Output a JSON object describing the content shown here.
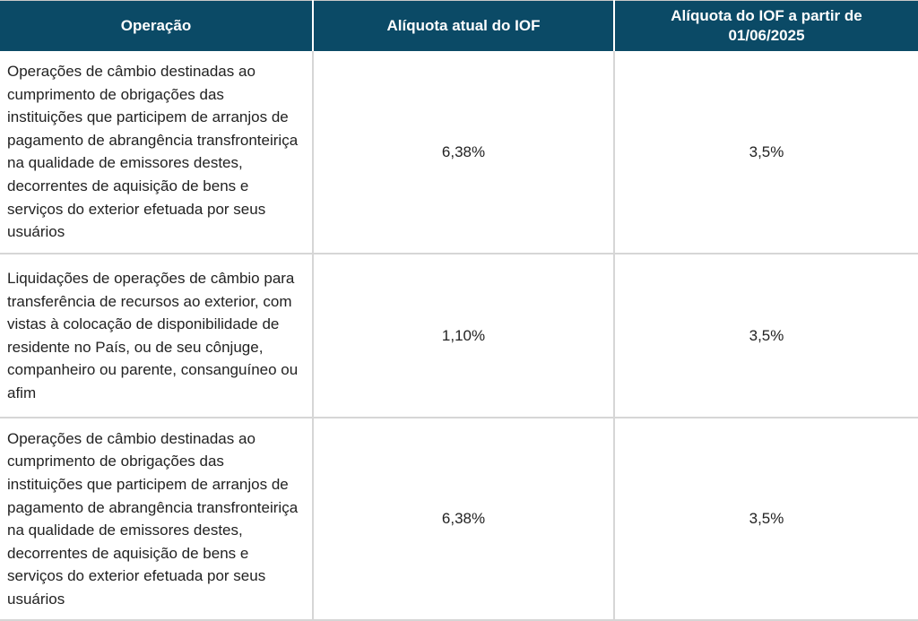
{
  "table": {
    "headers": [
      "Operação",
      "Alíquota atual do IOF",
      "Alíquota do IOF a partir de 01/06/2025"
    ],
    "rows": [
      {
        "operation": "Operações de câmbio destinadas ao cumprimento de obrigações das instituições que participem de arranjos de pagamento de abrangência transfronteiriça na qualidade de emissores destes, decorrentes de aquisição de bens e serviços do exterior efetuada por seus usuários",
        "current_rate": "6,38%",
        "new_rate": "3,5%"
      },
      {
        "operation": "Liquidações de operações de câmbio para transferência de recursos ao exterior, com vistas à colocação de disponibilidade de residente no País, ou de seu cônjuge, companheiro ou parente, consanguíneo ou afim",
        "current_rate": "1,10%",
        "new_rate": "3,5%"
      },
      {
        "operation": "Operações de câmbio destinadas ao cumprimento de obrigações das instituições que participem de arranjos de pagamento de abrangência transfronteiriça na qualidade de emissores destes, decorrentes de aquisição de bens e serviços do exterior efetuada por seus usuários",
        "current_rate": "6,38%",
        "new_rate": "3,5%"
      }
    ]
  },
  "colors": {
    "header_background": "#0b4a66",
    "header_text": "#ffffff",
    "grid_lines": "#d6d6d6",
    "body_text": "#222222"
  }
}
